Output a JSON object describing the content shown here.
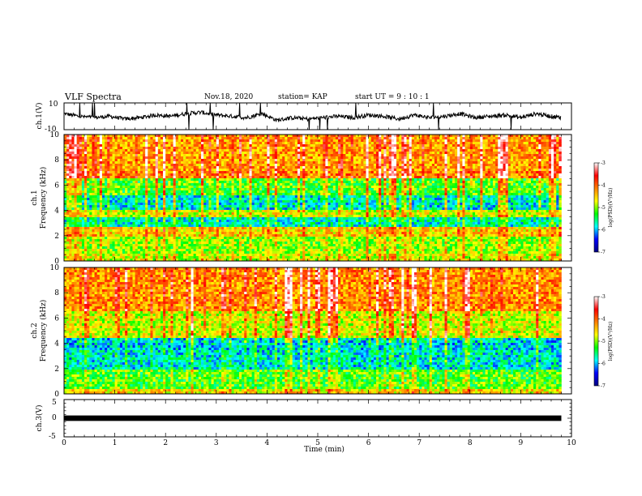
{
  "header": {
    "title": "VLF Spectra",
    "date": "Nov.18, 2020",
    "station": "station= KAP",
    "start": "start UT =  9 : 10 : 1"
  },
  "chart_data": [
    {
      "type": "line",
      "panel": "ch1-waveform",
      "ylabel": "ch.1(V)",
      "ylim": [
        -10,
        10
      ],
      "yticks": [
        "10",
        "-10"
      ],
      "xlim": [
        0,
        10
      ],
      "x_range_data": [
        0,
        9.8
      ],
      "description_of_series": "",
      "series": [
        {
          "x": [
            0,
            0.3,
            0.6,
            0.9,
            1.2,
            1.5,
            1.8,
            2.1,
            2.4,
            2.7,
            3.0,
            3.3,
            3.6,
            3.9,
            4.2,
            4.5,
            4.8,
            5.1,
            5.4,
            5.7,
            6.0,
            6.3,
            6.6,
            6.9,
            7.2,
            7.5,
            7.8,
            8.1,
            8.4,
            8.7,
            9.0,
            9.3,
            9.6,
            9.8
          ],
          "values": [
            2,
            0,
            -1,
            0,
            -2,
            -1,
            1,
            0,
            2,
            3,
            1,
            0,
            -1,
            2,
            -3,
            -1,
            -2,
            -1,
            0,
            -1,
            1,
            0,
            -2,
            1,
            -1,
            0,
            2,
            -1,
            0,
            1,
            -1,
            2,
            0,
            -1
          ]
        }
      ]
    },
    {
      "type": "heatmap",
      "panel": "ch1-spectrogram",
      "ylabel_line1": "ch.1",
      "ylabel_line2": "Frequency (kHz)",
      "ylim": [
        0,
        10
      ],
      "yticks": [
        "0",
        "2",
        "4",
        "6",
        "8",
        "10"
      ],
      "xlim": [
        0,
        10
      ],
      "x_range_data": [
        0,
        9.8
      ],
      "colorbar": {
        "label": "log(PSD)(V²/Hz)",
        "range": [
          -7,
          -3
        ],
        "ticks": [
          "-3",
          "-4",
          "-5",
          "-6",
          "-7"
        ],
        "colors": [
          "#000080",
          "#0000ff",
          "#00ffff",
          "#00ff00",
          "#ffff00",
          "#ff8000",
          "#ff0000",
          "#ffffff"
        ]
      },
      "band_levels_kHz": [
        {
          "f": [
            0.0,
            0.5
          ],
          "level": 0.55
        },
        {
          "f": [
            0.5,
            2.0
          ],
          "level": 0.5
        },
        {
          "f": [
            2.0,
            2.6
          ],
          "level": 0.62
        },
        {
          "f": [
            2.6,
            3.5
          ],
          "level": 0.32
        },
        {
          "f": [
            3.5,
            4.1
          ],
          "level": 0.55
        },
        {
          "f": [
            4.1,
            5.2
          ],
          "level": 0.3
        },
        {
          "f": [
            5.2,
            6.6
          ],
          "level": 0.45
        },
        {
          "f": [
            6.6,
            7.2
          ],
          "level": 0.72
        },
        {
          "f": [
            7.2,
            10.0
          ],
          "level": 0.68
        }
      ]
    },
    {
      "type": "heatmap",
      "panel": "ch2-spectrogram",
      "ylabel_line1": "ch.2",
      "ylabel_line2": "Frequency (kHz)",
      "ylim": [
        0,
        10
      ],
      "yticks": [
        "0",
        "2",
        "4",
        "6",
        "8",
        "10"
      ],
      "xlim": [
        0,
        10
      ],
      "x_range_data": [
        0,
        9.8
      ],
      "colorbar": {
        "label": "log(PSD)(V²/Hz)",
        "range": [
          -7,
          -3
        ],
        "ticks": [
          "-3",
          "-4",
          "-5",
          "-6",
          "-7"
        ],
        "colors": [
          "#000080",
          "#0000ff",
          "#00ffff",
          "#00ff00",
          "#ffff00",
          "#ff8000",
          "#ff0000",
          "#ffffff"
        ]
      },
      "band_levels_kHz": [
        {
          "f": [
            0.0,
            0.4
          ],
          "level": 0.6
        },
        {
          "f": [
            0.4,
            2.0
          ],
          "level": 0.45
        },
        {
          "f": [
            2.0,
            3.5
          ],
          "level": 0.3
        },
        {
          "f": [
            3.5,
            4.5
          ],
          "level": 0.28
        },
        {
          "f": [
            4.5,
            6.5
          ],
          "level": 0.55
        },
        {
          "f": [
            6.5,
            10.0
          ],
          "level": 0.7
        }
      ]
    },
    {
      "type": "line",
      "panel": "ch3-waveform",
      "ylabel": "ch.3(V)",
      "ylim": [
        -5,
        5
      ],
      "yticks": [
        "5",
        "0",
        "-5"
      ],
      "xlim": [
        0,
        10
      ],
      "x_range_data": [
        0,
        9.8
      ],
      "xlabel": "Time (min)",
      "xticks": [
        "0",
        "1",
        "2",
        "3",
        "4",
        "5",
        "6",
        "7",
        "8",
        "9",
        "10"
      ],
      "series": [
        {
          "x": [
            0,
            9.8
          ],
          "values": [
            0,
            0
          ],
          "band_halfwidth": 0.3
        }
      ]
    }
  ]
}
